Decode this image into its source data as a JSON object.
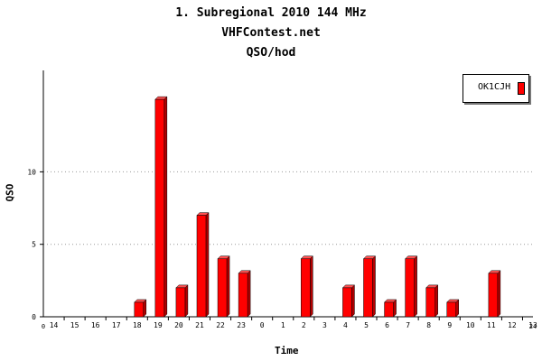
{
  "chart_data": {
    "type": "bar",
    "title": "1. Subregional 2010 144 MHz",
    "subtitle": "VHFContest.net",
    "subtitle2": "QSO/hod",
    "xlabel": "Time",
    "ylabel": "QSO",
    "ylim": [
      0,
      17
    ],
    "yticks": [
      0,
      5,
      10
    ],
    "grid": "horizontal-dotted",
    "legend_position": "top-right",
    "x_start_label": "0",
    "x_end_label": "24",
    "categories": [
      "14",
      "15",
      "16",
      "17",
      "18",
      "19",
      "20",
      "21",
      "22",
      "23",
      "0",
      "1",
      "2",
      "3",
      "4",
      "5",
      "6",
      "7",
      "8",
      "9",
      "10",
      "11",
      "12",
      "13"
    ],
    "series": [
      {
        "name": "OK1CJH",
        "color": "#ff0000",
        "values": [
          0,
          0,
          0,
          0,
          1,
          15,
          2,
          7,
          4,
          3,
          0,
          0,
          4,
          0,
          2,
          4,
          1,
          4,
          2,
          1,
          0,
          3,
          0,
          0
        ]
      }
    ]
  }
}
